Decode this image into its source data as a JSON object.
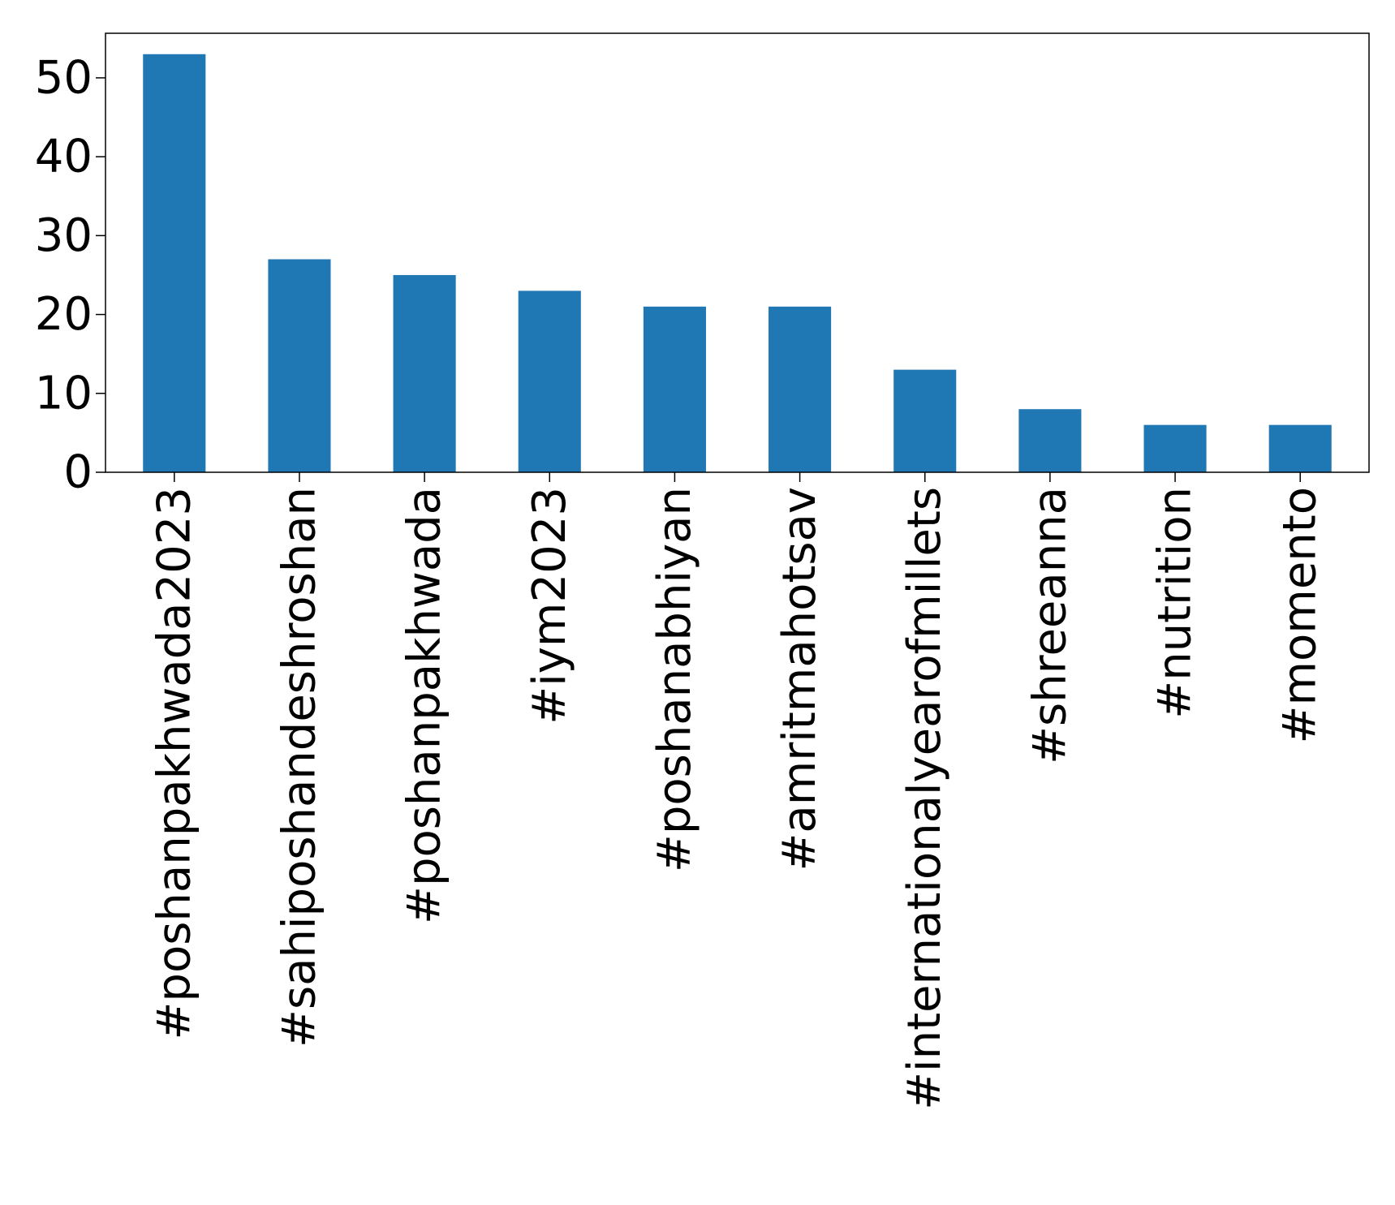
{
  "chart_data": {
    "type": "bar",
    "title": "",
    "xlabel": "",
    "ylabel": "",
    "categories": [
      "#poshanpakhwada2023",
      "#sahiposhandeshroshan",
      "#poshanpakhwada",
      "#iym2023",
      "#poshanabhiyan",
      "#amritmahotsav",
      "#internationalyearofmillets",
      "#shreeanna",
      "#nutrition",
      "#momento"
    ],
    "values": [
      53,
      27,
      25,
      23,
      21,
      21,
      13,
      8,
      6,
      6
    ],
    "ylim": [
      0,
      55.65
    ],
    "yticks": [
      0,
      10,
      20,
      30,
      40,
      50
    ],
    "ytick_labels": [
      "0",
      "10",
      "20",
      "30",
      "40",
      "50"
    ],
    "grid": false,
    "legend": "none",
    "colors": {
      "bar": "#1f77b4",
      "axis": "#000000",
      "background": "#ffffff"
    }
  }
}
